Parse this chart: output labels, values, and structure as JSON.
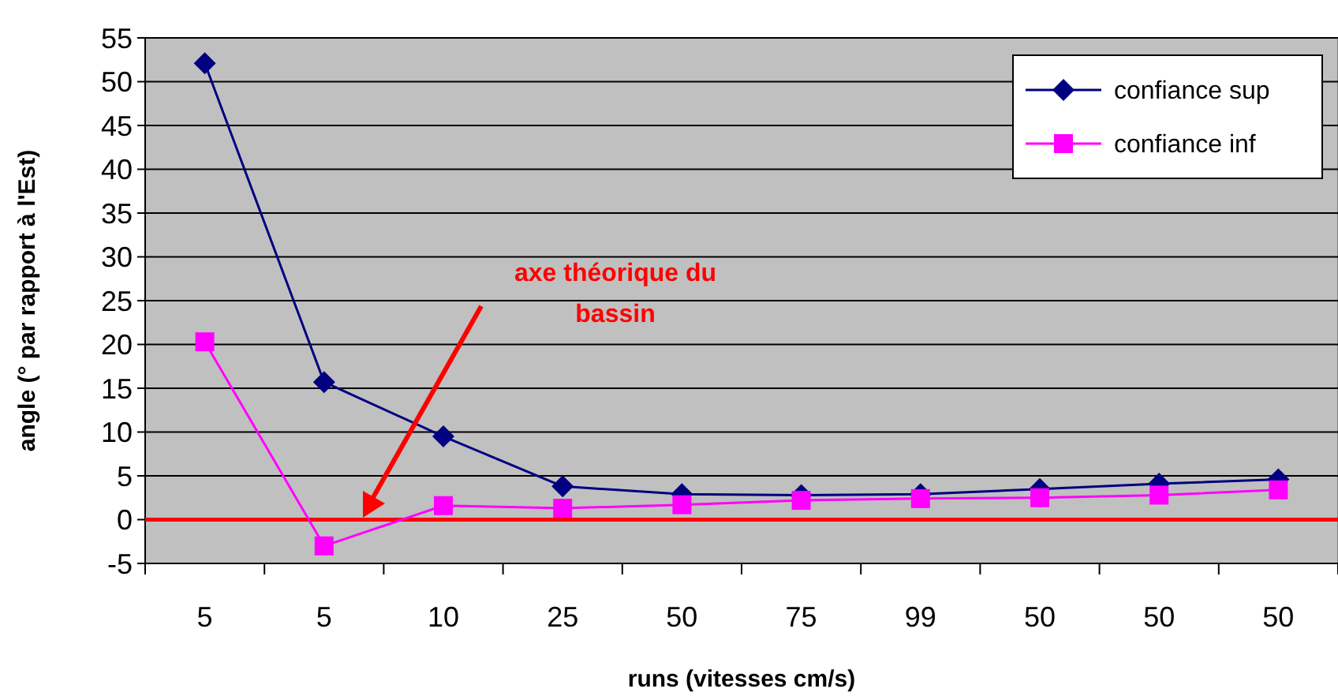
{
  "chart_data": {
    "type": "line",
    "xlabel": "runs (vitesses cm/s)",
    "ylabel": "angle (° par rapport à l'Est)",
    "categories": [
      "5",
      "5",
      "10",
      "25",
      "50",
      "75",
      "99",
      "50",
      "50",
      "50"
    ],
    "series": [
      {
        "name": "confiance sup",
        "color": "#000080",
        "marker": "diamond",
        "values": [
          52.1,
          15.7,
          9.5,
          3.8,
          2.9,
          2.8,
          2.9,
          3.5,
          4.1,
          4.6
        ]
      },
      {
        "name": "confiance inf",
        "color": "#ff00ff",
        "marker": "square",
        "values": [
          20.3,
          -3.0,
          1.6,
          1.3,
          1.7,
          2.2,
          2.4,
          2.5,
          2.8,
          3.4
        ]
      }
    ],
    "ylim": [
      -5,
      55
    ],
    "yticks": [
      -5,
      0,
      5,
      10,
      15,
      20,
      25,
      30,
      35,
      40,
      45,
      50,
      55
    ],
    "grid": "y",
    "legend": "top right",
    "ref_lines": [
      {
        "axis": "y",
        "value": 0,
        "color": "#ff0000"
      }
    ],
    "annotations": [
      "axe théorique du\nbassin"
    ]
  }
}
